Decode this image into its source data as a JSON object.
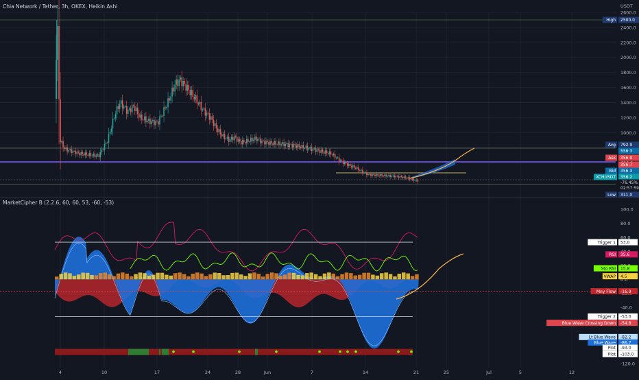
{
  "header": {
    "title": "Chia Network / Tether, 3h, OKEX, Heikin Ashi",
    "indicator": "MarketCipher B (2.2.6, 60, 60, 53, -60, -53)"
  },
  "currency": "USDT",
  "colors": {
    "background": "#131722",
    "grid": "#1e2230",
    "candle_up": "#26a69a",
    "candle_down": "#ef5350",
    "level_line": "#7b5cff",
    "projection": "#ffb74d",
    "wave_blue": "#1e6fd9",
    "money_flow_red": "#c0272d",
    "rsi": "#d81b60",
    "stoch": "#76ff03",
    "vwap": "#f5d142"
  },
  "chart_data": [
    {
      "type": "candlestick",
      "name": "XCHUSDT",
      "y_axis_ticks": [
        600,
        800,
        1000,
        1200,
        1400,
        1600,
        1800,
        2000,
        2200,
        2400,
        2600
      ],
      "y_axis_ticks_printed": [
        "600.0",
        "800.0",
        "1000.0",
        "1200.0",
        "1400.0",
        "1600.0",
        "1800.0",
        "2000.0",
        "2200.0",
        "2400.0",
        "2600.0"
      ],
      "ylim": [
        300,
        2600
      ],
      "x_ticks": [
        "4",
        "10",
        "17",
        "24",
        "28",
        "Jun",
        "7",
        "14",
        "21",
        "25",
        "Jul",
        "5",
        "12"
      ],
      "price_path": [
        [
          0,
          1450
        ],
        [
          0.2,
          2500
        ],
        [
          0.4,
          900
        ],
        [
          0.8,
          780
        ],
        [
          2,
          720
        ],
        [
          3.5,
          690
        ],
        [
          4.2,
          900
        ],
        [
          4.8,
          1250
        ],
        [
          5.2,
          1400
        ],
        [
          5.8,
          1280
        ],
        [
          6.3,
          1350
        ],
        [
          6.8,
          1200
        ],
        [
          7.5,
          1150
        ],
        [
          8.2,
          1130
        ],
        [
          9.0,
          1400
        ],
        [
          9.6,
          1650
        ],
        [
          10.0,
          1700
        ],
        [
          10.6,
          1580
        ],
        [
          11.2,
          1450
        ],
        [
          11.8,
          1300
        ],
        [
          12.4,
          1200
        ],
        [
          12.9,
          1050
        ],
        [
          13.4,
          950
        ],
        [
          13.9,
          900
        ],
        [
          14.3,
          940
        ],
        [
          14.8,
          870
        ],
        [
          15.2,
          880
        ],
        [
          16.0,
          920
        ],
        [
          16.5,
          880
        ],
        [
          17.2,
          860
        ],
        [
          18.0,
          850
        ],
        [
          19.0,
          830
        ],
        [
          20.0,
          800
        ],
        [
          21.0,
          760
        ],
        [
          22.0,
          720
        ],
        [
          22.8,
          620
        ],
        [
          23.5,
          560
        ],
        [
          24.0,
          530
        ],
        [
          24.5,
          480
        ],
        [
          25.0,
          440
        ],
        [
          26.0,
          430
        ],
        [
          27.0,
          420
        ],
        [
          28.0,
          400
        ],
        [
          28.6,
          370
        ],
        [
          29.0,
          356
        ]
      ],
      "labels": [
        {
          "name": "High",
          "value": "2500.0"
        },
        {
          "name": "Avg",
          "value": "792.9"
        },
        {
          "name": "",
          "value": "556.3"
        },
        {
          "name": "Ask",
          "value": "356.9"
        },
        {
          "name": "",
          "value": "356.7"
        },
        {
          "name": "Bid",
          "value": "356.3"
        },
        {
          "name": "XCHUSDT",
          "value": "356.2"
        },
        {
          "name": "",
          "value": "-76.45%"
        },
        {
          "name": "",
          "value": "02:57:59"
        },
        {
          "name": "Low",
          "value": "311.0"
        }
      ]
    },
    {
      "type": "area",
      "name": "MarketCipher B",
      "y_axis_ticks": [
        100,
        80,
        60,
        40,
        20,
        0,
        -20,
        -40,
        -60,
        -80,
        -100,
        -120
      ],
      "y_axis_ticks_printed": [
        "100.0",
        "80.0",
        "60.0",
        "40.0",
        "20.0",
        "0.0",
        "-20.0",
        "-40.0",
        "-60.0",
        "-80.0",
        "-100.0",
        "-120.0"
      ],
      "ylim": [
        -120,
        105
      ],
      "levels": {
        "trigger_1": 53,
        "trigger_2": -53
      },
      "labels": [
        {
          "name": "Trigger 1",
          "value": "53.0"
        },
        {
          "name": "RSI",
          "value": "35.6"
        },
        {
          "name": "Sto RSI",
          "value": "15.8"
        },
        {
          "name": "VWAP",
          "value": "4.5"
        },
        {
          "name": "Mny Flow",
          "value": "-16.9"
        },
        {
          "name": "Trigger 2",
          "value": "-53.0"
        },
        {
          "name": "Blue Wave Crossing Down",
          "value": "-54.8"
        },
        {
          "name": "Lt Blue Wave",
          "value": "-82.2"
        },
        {
          "name": "Blue Wave",
          "value": "-86.7"
        },
        {
          "name": "Plot",
          "value": "-93.0"
        },
        {
          "name": "Plot",
          "value": "-103.0"
        }
      ]
    }
  ]
}
